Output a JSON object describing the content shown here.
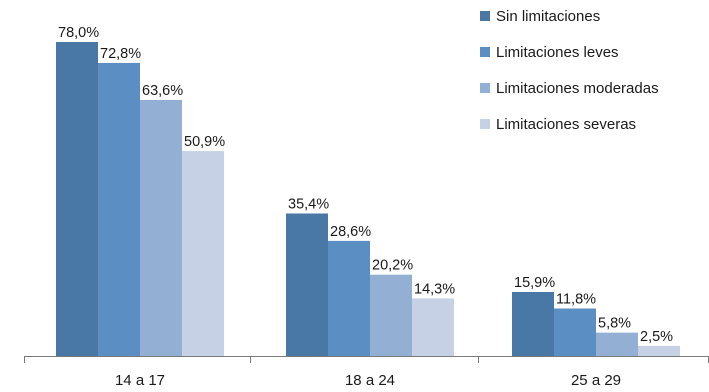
{
  "chart_data": {
    "type": "bar",
    "title": "",
    "xlabel": "",
    "ylabel": "",
    "ylim": [
      0,
      85
    ],
    "categories": [
      "14 a 17",
      "18 a 24",
      "25 a 29"
    ],
    "series": [
      {
        "name": "Sin limitaciones",
        "color": "#4a78a6",
        "values": [
          78.0,
          35.4,
          15.9
        ],
        "labels": [
          "78,0%",
          "35,4%",
          "15,9%"
        ]
      },
      {
        "name": "Limitaciones leves",
        "color": "#5b8ec2",
        "values": [
          72.8,
          28.6,
          11.8
        ],
        "labels": [
          "72,8%",
          "28,6%",
          "11,8%"
        ]
      },
      {
        "name": "Limitaciones moderadas",
        "color": "#93afd4",
        "values": [
          63.6,
          20.2,
          5.8
        ],
        "labels": [
          "63,6%",
          "20,2%",
          "5,8%"
        ]
      },
      {
        "name": "Limitaciones severas",
        "color": "#c6d1e5",
        "values": [
          50.9,
          14.3,
          2.5
        ],
        "labels": [
          "50,9%",
          "14,3%",
          "2,5%"
        ]
      }
    ],
    "legend_position": "top-right",
    "grid": false
  }
}
